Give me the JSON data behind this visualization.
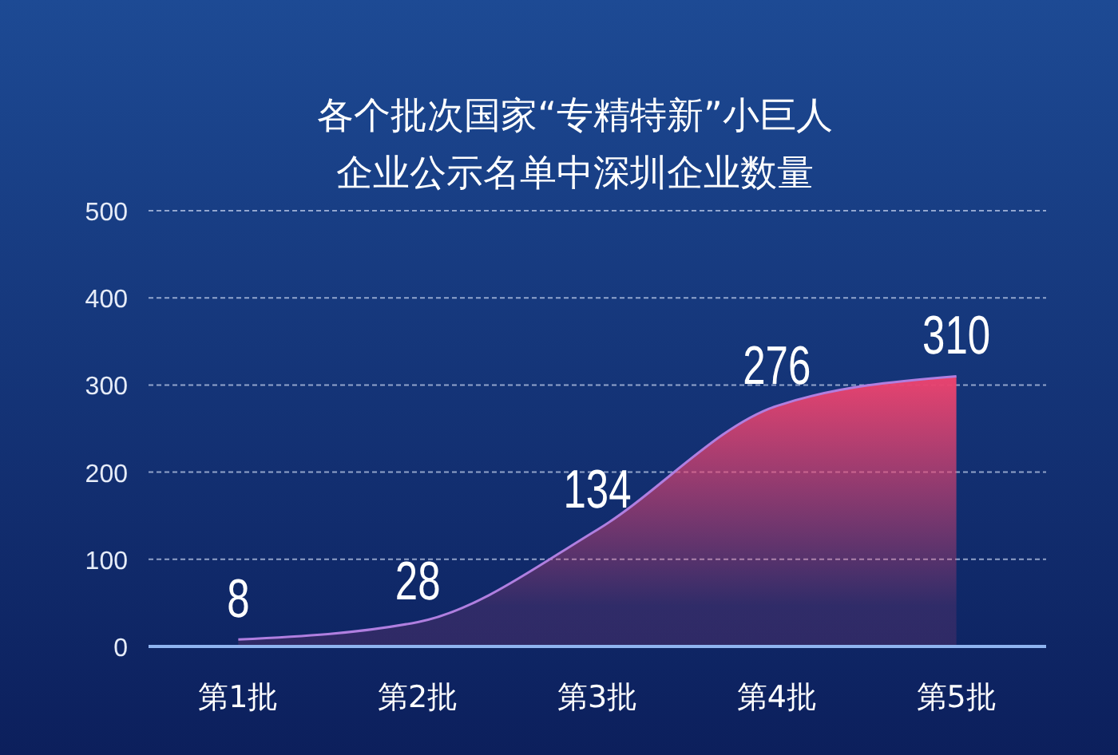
{
  "chart_data": {
    "type": "area",
    "title": "各个批次国家“专精特新”小巨人企业公示名单中深圳企业数量",
    "categories": [
      "第1批",
      "第2批",
      "第3批",
      "第4批",
      "第5批"
    ],
    "series": [
      {
        "color": "#e8436f",
        "values": [
          8,
          28,
          134,
          276,
          310
        ]
      }
    ],
    "ylim": [
      0,
      500
    ],
    "yticks": [
      0,
      100,
      200,
      300,
      400,
      500
    ],
    "grid": "y",
    "data_labels": true
  }
}
